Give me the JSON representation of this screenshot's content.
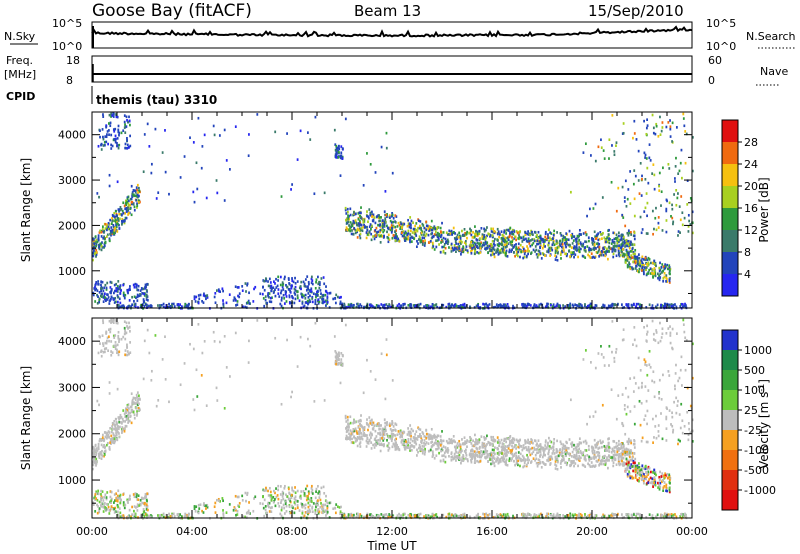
{
  "header": {
    "station": "Goose Bay (fitACF)",
    "beam": "Beam 13",
    "date": "15/Sep/2010"
  },
  "top_panels": {
    "nsky_label": "N.Sky",
    "nsky_ticks": [
      "10^5",
      "10^0"
    ],
    "nsearch_label": "N.Search",
    "nsearch_ticks": [
      "10^5",
      "10^0"
    ],
    "freq_label": "Freq.",
    "freq_unit": "[MHz]",
    "freq_ticks": [
      "18",
      "8"
    ],
    "nave_label": "Nave",
    "nave_ticks": [
      "60",
      "0"
    ],
    "cpid_label": "CPID",
    "cpid_value": "themis (tau) 3310"
  },
  "chart_data": [
    {
      "type": "heatmap",
      "panel": "power",
      "ylabel": "Slant Range [km]",
      "ylim": [
        180,
        4500
      ],
      "yticks": [
        1000,
        2000,
        3000,
        4000
      ],
      "xlim_hours": [
        0,
        24
      ],
      "xticks": [
        "00:00",
        "04:00",
        "08:00",
        "12:00",
        "16:00",
        "20:00",
        "00:00"
      ],
      "colorbar": {
        "label": "Power [dB]",
        "ticks": [
          "28",
          "24",
          "20",
          "16",
          "12",
          "8",
          "4"
        ],
        "colors": [
          "#e01010",
          "#f06a10",
          "#f5c010",
          "#a8d020",
          "#2e9a3c",
          "#3a7a6a",
          "#2244bb",
          "#2626f0"
        ]
      },
      "regions": [
        {
          "t": [
            10.1,
            21.6
          ],
          "r": [
            1350,
            2350
          ],
          "level": "mid",
          "desc": "main band"
        },
        {
          "t": [
            0.0,
            1.8
          ],
          "r": [
            1400,
            2800
          ],
          "level": "mid"
        },
        {
          "t": [
            0.0,
            2.5
          ],
          "r": [
            300,
            950
          ],
          "level": "low"
        },
        {
          "t": [
            3.0,
            10.0
          ],
          "r": [
            220,
            700
          ],
          "level": "low"
        },
        {
          "t": [
            21.5,
            24.0
          ],
          "r": [
            900,
            4400
          ],
          "level": "mid"
        },
        {
          "t": [
            0.5,
            1.5
          ],
          "r": [
            3800,
            4500
          ],
          "level": "low"
        }
      ]
    },
    {
      "type": "heatmap",
      "panel": "velocity",
      "ylabel": "Slant Range [km]",
      "ylim": [
        180,
        4500
      ],
      "yticks": [
        1000,
        2000,
        3000,
        4000
      ],
      "xlim_hours": [
        0,
        24
      ],
      "xticks": [
        "00:00",
        "04:00",
        "08:00",
        "12:00",
        "16:00",
        "20:00",
        "00:00"
      ],
      "xlabel": "Time UT",
      "colorbar": {
        "label": "Velocity [m s^-1]",
        "ticks": [
          "1000",
          "500",
          "100",
          "25",
          "-25",
          "-100",
          "-500",
          "-1000"
        ],
        "colors": [
          "#2233cc",
          "#1e8a4a",
          "#3aa63a",
          "#6ccc3a",
          "#bdbdbd",
          "#f5a020",
          "#f07010",
          "#e03010",
          "#e01010"
        ]
      }
    }
  ]
}
